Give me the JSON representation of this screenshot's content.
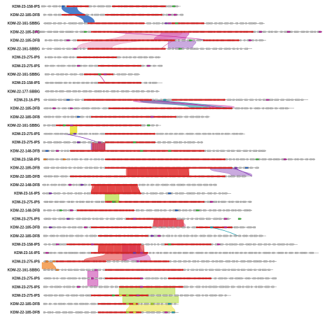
{
  "figure": {
    "type": "gene-synteny-alignment",
    "colors": {
      "gene_default": "#b8b8b8",
      "gene_outline": "#555555",
      "backbone": "#7a7a7a",
      "core_region": "#d42020",
      "magenta": "#c020a0",
      "purple": "#7a2ab0",
      "green": "#38b838",
      "blue": "#2060c0",
      "cyan": "#20a0b0",
      "orange": "#f08020",
      "yellow": "#e8e020",
      "pink": "#e0609a",
      "red_link": "#e02020",
      "lime_link": "#a8d820"
    },
    "tracks": [
      {
        "label": "KDM-23-158-IPS"
      },
      {
        "label": "KDM-22-185-DFB"
      },
      {
        "label": "KDM-22-161-SBBG"
      },
      {
        "label": "KDM-22-185-DFB"
      },
      {
        "label": "KDM-22-185-DFB"
      },
      {
        "label": "KDM-22-161-SBBG"
      },
      {
        "label": "KDM-23-275-IPS"
      },
      {
        "label": "KDM-23-275-IPS"
      },
      {
        "label": "KDM-22-161-SBBG"
      },
      {
        "label": "KDM-23-158-IPS"
      },
      {
        "label": "KDM-22-177-SBBG"
      },
      {
        "label": "KDM-23-16-IPS"
      },
      {
        "label": "KDM-22-185-DFB"
      },
      {
        "label": "KDM-22-185-DFB"
      },
      {
        "label": "KDM-22-161-SBBG"
      },
      {
        "label": "KDM-23-275-IPS"
      },
      {
        "label": "KDM-23-275-IPS"
      },
      {
        "label": "KDM-22-148-DFB"
      },
      {
        "label": "KDM-23-158-IPS"
      },
      {
        "label": "KDM-22-185-DFB"
      },
      {
        "label": "KDM-22-185-DFB"
      },
      {
        "label": "KDM-22-148-DFB"
      },
      {
        "label": "KDM-23-16-IPS"
      },
      {
        "label": "KDM-23-275-IPS"
      },
      {
        "label": "KDM-22-148-DFB"
      },
      {
        "label": "KDM-23-275-IPS"
      },
      {
        "label": "KDM-22-185-DFB"
      },
      {
        "label": "KDM-22-185-DFB"
      },
      {
        "label": "KDM-23-158-IPS"
      },
      {
        "label": "KDM-23-16-IPS"
      },
      {
        "label": "KDM-23-275-IPS"
      },
      {
        "label": "KDM-22-161-SBBG"
      },
      {
        "label": "KDM-23-275-IPS"
      },
      {
        "label": "KDM-23-275-IPS"
      },
      {
        "label": "KDM-23-275-IPS"
      },
      {
        "label": "KDM-22-185-DFB"
      },
      {
        "label": "KDM-22-185-DFB"
      }
    ]
  }
}
